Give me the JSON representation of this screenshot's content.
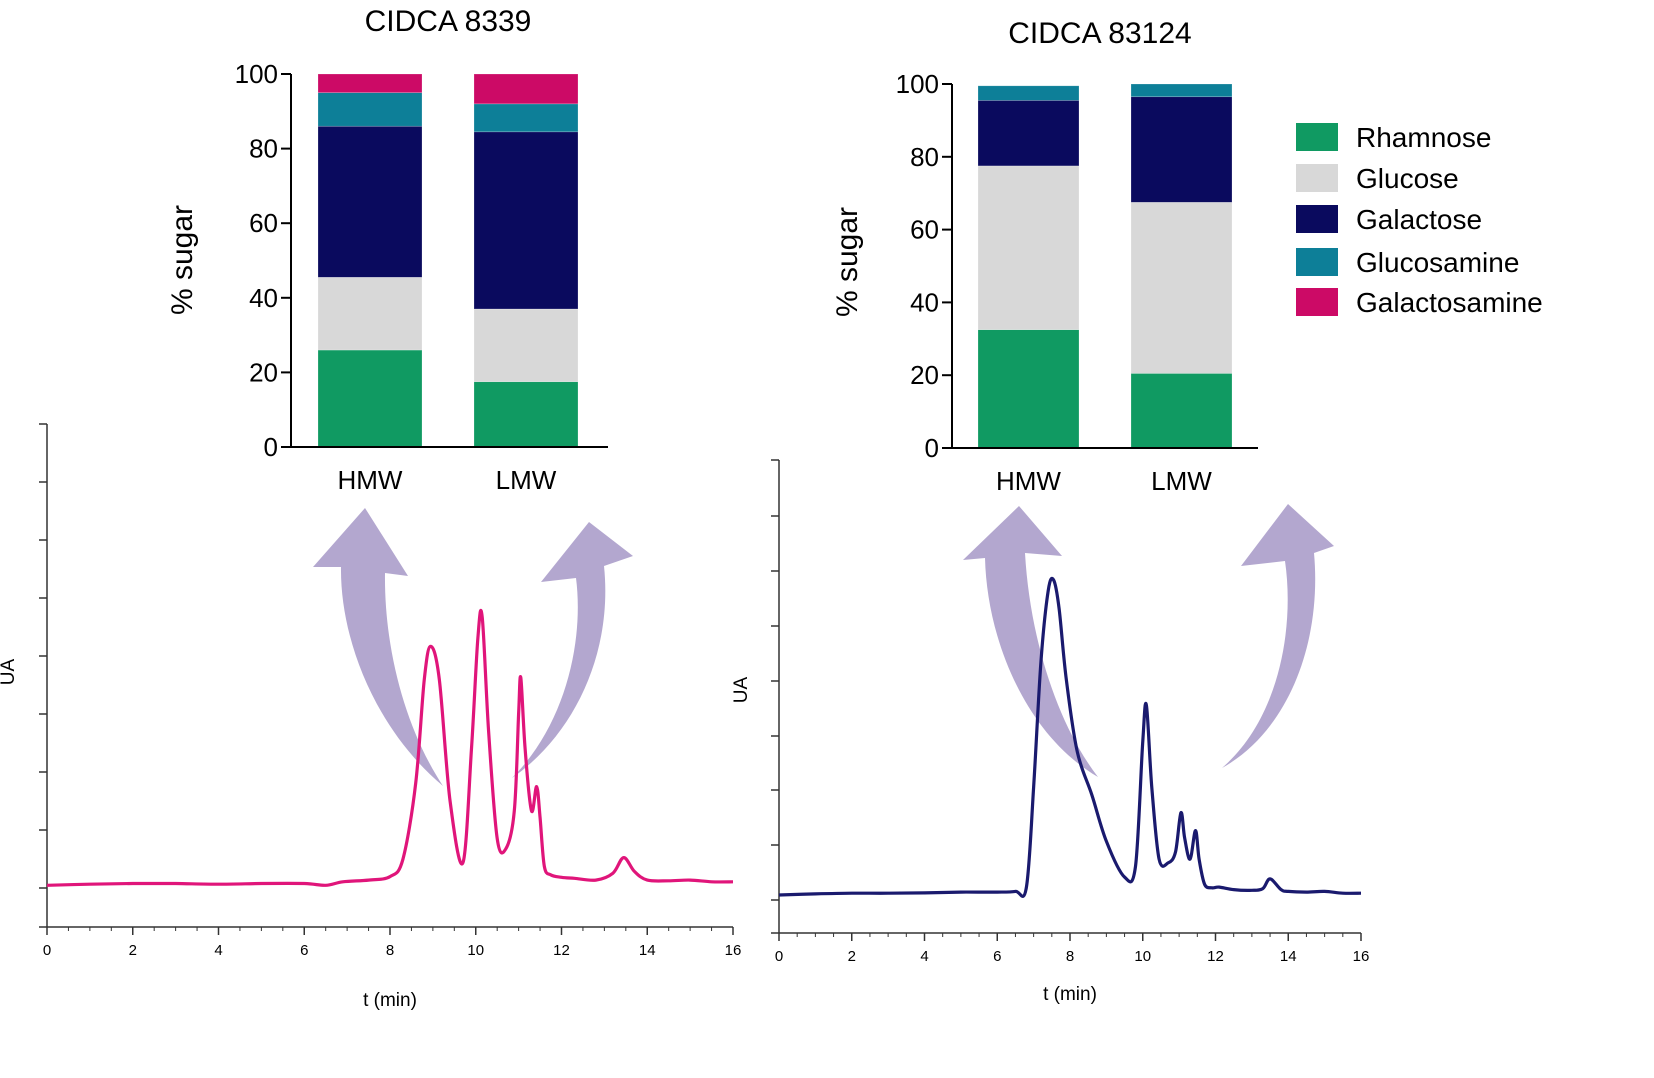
{
  "chart_data": [
    {
      "id": "bar-cidca-8339",
      "type": "bar",
      "stacked": true,
      "title": "CIDCA 8339",
      "xlabel": "",
      "ylabel": "% sugar",
      "ylim": [
        0,
        100
      ],
      "yticks": [
        0,
        20,
        40,
        60,
        80,
        100
      ],
      "categories": [
        "HMW",
        "LMW"
      ],
      "series": [
        {
          "name": "Rhamnose",
          "color": "#109a62",
          "values": [
            26,
            17.5
          ]
        },
        {
          "name": "Glucose",
          "color": "#d8d8d8",
          "values": [
            19.5,
            19.5
          ]
        },
        {
          "name": "Galactose",
          "color": "#0a0a5e",
          "values": [
            40.5,
            47.5
          ]
        },
        {
          "name": "Glucosamine",
          "color": "#0d7f98",
          "values": [
            9,
            7.5
          ]
        },
        {
          "name": "Galactosamine",
          "color": "#cc0a66",
          "values": [
            5,
            8
          ]
        }
      ]
    },
    {
      "id": "bar-cidca-83124",
      "type": "bar",
      "stacked": true,
      "title": "CIDCA 83124",
      "xlabel": "",
      "ylabel": "% sugar",
      "ylim": [
        0,
        100
      ],
      "yticks": [
        0,
        20,
        40,
        60,
        80,
        100
      ],
      "categories": [
        "HMW",
        "LMW"
      ],
      "series": [
        {
          "name": "Rhamnose",
          "color": "#109a62",
          "values": [
            32.5,
            20.5
          ]
        },
        {
          "name": "Glucose",
          "color": "#d8d8d8",
          "values": [
            45,
            47
          ]
        },
        {
          "name": "Galactose",
          "color": "#0a0a5e",
          "values": [
            18,
            29
          ]
        },
        {
          "name": "Glucosamine",
          "color": "#0d7f98",
          "values": [
            4,
            3.5
          ]
        },
        {
          "name": "Galactosamine",
          "color": "#cc0a66",
          "values": [
            0,
            0
          ]
        }
      ]
    },
    {
      "id": "chrom-cidca-8339",
      "type": "line",
      "xlabel": "t (min)",
      "ylabel": "UA",
      "xlim": [
        0,
        16
      ],
      "xticks": [
        0,
        2,
        4,
        6,
        8,
        10,
        12,
        14,
        16
      ],
      "ylim": [
        -0.08,
        1.0
      ],
      "color": "#e0157a",
      "x": [
        0,
        1,
        2,
        3,
        4,
        5,
        6,
        6.5,
        6.9,
        7.5,
        8,
        8.3,
        8.6,
        8.8,
        8.95,
        9.15,
        9.4,
        9.7,
        9.9,
        10.05,
        10.15,
        10.3,
        10.5,
        10.7,
        10.9,
        11.0,
        11.05,
        11.15,
        11.3,
        11.42,
        11.5,
        11.6,
        11.75,
        12.0,
        12.3,
        12.8,
        13.2,
        13.45,
        13.7,
        14.0,
        14.5,
        15,
        15.5,
        16
      ],
      "y": [
        0.005,
        0.008,
        0.01,
        0.01,
        0.008,
        0.01,
        0.01,
        0.005,
        0.015,
        0.02,
        0.03,
        0.08,
        0.3,
        0.6,
        0.695,
        0.6,
        0.25,
        0.07,
        0.4,
        0.72,
        0.78,
        0.45,
        0.14,
        0.11,
        0.22,
        0.5,
        0.605,
        0.4,
        0.22,
        0.29,
        0.2,
        0.06,
        0.035,
        0.028,
        0.025,
        0.02,
        0.04,
        0.085,
        0.045,
        0.02,
        0.018,
        0.02,
        0.015,
        0.015
      ]
    },
    {
      "id": "chrom-cidca-83124",
      "type": "line",
      "xlabel": "t (min)",
      "ylabel": "UA",
      "xlim": [
        0,
        16
      ],
      "xticks": [
        0,
        2,
        4,
        6,
        8,
        10,
        12,
        14,
        16
      ],
      "ylim": [
        -0.08,
        1.0
      ],
      "color": "#1a1a6e",
      "x": [
        0,
        1,
        2,
        3,
        4,
        5,
        6,
        6.5,
        6.8,
        7.0,
        7.2,
        7.4,
        7.55,
        7.7,
        7.9,
        8.2,
        8.6,
        9.0,
        9.5,
        9.8,
        10.0,
        10.1,
        10.25,
        10.45,
        10.7,
        10.9,
        11.05,
        11.15,
        11.3,
        11.45,
        11.55,
        11.7,
        11.9,
        12.1,
        12.5,
        13.0,
        13.3,
        13.5,
        13.8,
        14.0,
        14.5,
        15,
        15.5,
        16
      ],
      "y": [
        0.0,
        0.003,
        0.005,
        0.005,
        0.006,
        0.008,
        0.008,
        0.01,
        0.02,
        0.3,
        0.65,
        0.85,
        0.88,
        0.8,
        0.6,
        0.4,
        0.28,
        0.15,
        0.05,
        0.08,
        0.43,
        0.53,
        0.3,
        0.1,
        0.09,
        0.12,
        0.23,
        0.16,
        0.1,
        0.18,
        0.1,
        0.03,
        0.02,
        0.022,
        0.015,
        0.013,
        0.018,
        0.045,
        0.015,
        0.01,
        0.008,
        0.01,
        0.005,
        0.005
      ]
    }
  ]
}
